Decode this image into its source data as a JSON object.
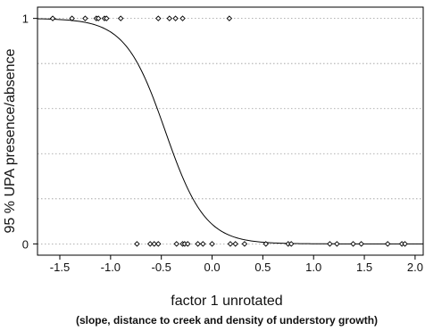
{
  "chart_data": {
    "type": "scatter",
    "xlabel": "factor 1 unrotated",
    "ylabel": "95 % UPA presence/absence",
    "caption": "(slope, distance to creek and density of understory growth)",
    "xlim": [
      -1.72,
      2.08
    ],
    "ylim": [
      -0.05,
      1.05
    ],
    "x_ticks": [
      -1.5,
      -1.0,
      -0.5,
      0.0,
      0.5,
      1.0,
      1.5,
      2.0
    ],
    "x_tick_labels": [
      "-1.5",
      "-1.0",
      "-0.5",
      "0.0",
      "0.5",
      "1.0",
      "1.5",
      "2.0"
    ],
    "y_ticks": [
      0,
      1
    ],
    "y_tick_labels": [
      "0",
      "1"
    ],
    "grid": "horizontal dotted",
    "series": [
      {
        "marker": "open-diamond",
        "x": [
          -1.57,
          -1.38,
          -1.25,
          -1.14,
          -1.12,
          -1.06,
          -1.04,
          -0.9,
          -0.53,
          -0.42,
          -0.36,
          -0.29,
          0.17
        ],
        "y": [
          1,
          1,
          1,
          1,
          1,
          1,
          1,
          1,
          1,
          1,
          1,
          1,
          1
        ]
      },
      {
        "marker": "open-diamond",
        "x": [
          -0.74,
          -0.61,
          -0.57,
          -0.53,
          -0.35,
          -0.29,
          -0.27,
          -0.24,
          -0.14,
          -0.09,
          0.0,
          0.18,
          0.23,
          0.32,
          0.53,
          0.75,
          0.78,
          1.16,
          1.23,
          1.39,
          1.47,
          1.73,
          1.87,
          1.9
        ],
        "y": [
          0,
          0,
          0,
          0,
          0,
          0,
          0,
          0,
          0,
          0,
          0,
          0,
          0,
          0,
          0,
          0,
          0,
          0,
          0,
          0,
          0,
          0,
          0,
          0
        ]
      },
      {
        "type": "line",
        "style": "solid",
        "model": "logistic",
        "intercept": -2.35,
        "slope": -5.1
      }
    ]
  }
}
